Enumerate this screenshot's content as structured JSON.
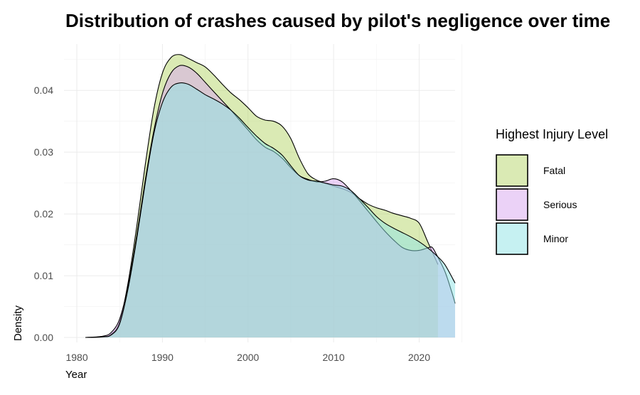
{
  "chart_data": {
    "type": "area",
    "subtype": "density",
    "title": "Distribution of crashes caused by pilot's negligence over time",
    "xlabel": "Year",
    "ylabel": "Density",
    "xlim": [
      1978.5,
      2024.2
    ],
    "ylim": [
      -0.0008,
      0.0475
    ],
    "x_ticks": [
      1980,
      1990,
      2000,
      2010,
      2020
    ],
    "y_ticks": [
      0.0,
      0.01,
      0.02,
      0.03,
      0.04
    ],
    "y_tick_labels": [
      "0.00",
      "0.01",
      "0.02",
      "0.03",
      "0.04"
    ],
    "grid": true,
    "legend": {
      "title": "Highest Injury Level",
      "position": "right"
    },
    "series": [
      {
        "name": "Fatal",
        "color": "#b5d56a",
        "points": [
          [
            1981,
            0
          ],
          [
            1983,
            0.0001
          ],
          [
            1984,
            0.0005
          ],
          [
            1985,
            0.0025
          ],
          [
            1986,
            0.009
          ],
          [
            1987,
            0.018
          ],
          [
            1988,
            0.028
          ],
          [
            1989,
            0.037
          ],
          [
            1990,
            0.0428
          ],
          [
            1991,
            0.0453
          ],
          [
            1992,
            0.0458
          ],
          [
            1993,
            0.0452
          ],
          [
            1994,
            0.0445
          ],
          [
            1995,
            0.0438
          ],
          [
            1996,
            0.0425
          ],
          [
            1997,
            0.041
          ],
          [
            1998,
            0.0396
          ],
          [
            1999,
            0.0385
          ],
          [
            2000,
            0.0372
          ],
          [
            2001,
            0.0358
          ],
          [
            2002,
            0.0352
          ],
          [
            2003,
            0.035
          ],
          [
            2004,
            0.0342
          ],
          [
            2005,
            0.0322
          ],
          [
            2006,
            0.029
          ],
          [
            2007,
            0.0265
          ],
          [
            2008,
            0.0255
          ],
          [
            2009,
            0.025
          ],
          [
            2010,
            0.0245
          ],
          [
            2011,
            0.0241
          ],
          [
            2012,
            0.0235
          ],
          [
            2013,
            0.0225
          ],
          [
            2014,
            0.0216
          ],
          [
            2015,
            0.021
          ],
          [
            2016,
            0.0206
          ],
          [
            2017,
            0.0201
          ],
          [
            2018,
            0.0197
          ],
          [
            2019,
            0.0193
          ],
          [
            2020,
            0.0185
          ],
          [
            2021,
            0.0155
          ],
          [
            2022.2,
            0.0118
          ]
        ]
      },
      {
        "name": "Serious",
        "color": "#d7a6f0",
        "points": [
          [
            1981,
            0
          ],
          [
            1983,
            0.0002
          ],
          [
            1984,
            0.0008
          ],
          [
            1985,
            0.003
          ],
          [
            1986,
            0.0085
          ],
          [
            1987,
            0.0165
          ],
          [
            1988,
            0.0255
          ],
          [
            1989,
            0.0335
          ],
          [
            1990,
            0.0395
          ],
          [
            1991,
            0.0428
          ],
          [
            1992,
            0.044
          ],
          [
            1993,
            0.0438
          ],
          [
            1994,
            0.0428
          ],
          [
            1995,
            0.0413
          ],
          [
            1996,
            0.0398
          ],
          [
            1997,
            0.0383
          ],
          [
            1998,
            0.0368
          ],
          [
            1999,
            0.0352
          ],
          [
            2000,
            0.0336
          ],
          [
            2001,
            0.032
          ],
          [
            2002,
            0.0308
          ],
          [
            2003,
            0.0301
          ],
          [
            2004,
            0.029
          ],
          [
            2005,
            0.0275
          ],
          [
            2006,
            0.0262
          ],
          [
            2007,
            0.0256
          ],
          [
            2008,
            0.0252
          ],
          [
            2009,
            0.0253
          ],
          [
            2010,
            0.0257
          ],
          [
            2011,
            0.0252
          ],
          [
            2012,
            0.0238
          ],
          [
            2013,
            0.0222
          ],
          [
            2014,
            0.0205
          ],
          [
            2015,
            0.0188
          ],
          [
            2016,
            0.0172
          ],
          [
            2017,
            0.0158
          ],
          [
            2018,
            0.0146
          ],
          [
            2019,
            0.0141
          ],
          [
            2020,
            0.0141
          ],
          [
            2021,
            0.0145
          ],
          [
            2021.5,
            0.0146
          ],
          [
            2022,
            0.0135
          ],
          [
            2023,
            0.0107
          ],
          [
            2023.8,
            0.0074
          ],
          [
            2024.2,
            0.0055
          ]
        ]
      },
      {
        "name": "Minor",
        "color": "#8ee3e6",
        "points": [
          [
            1981,
            0
          ],
          [
            1983,
            0.0001
          ],
          [
            1984,
            0.0004
          ],
          [
            1985,
            0.0022
          ],
          [
            1986,
            0.008
          ],
          [
            1987,
            0.016
          ],
          [
            1988,
            0.025
          ],
          [
            1989,
            0.033
          ],
          [
            1990,
            0.038
          ],
          [
            1991,
            0.0405
          ],
          [
            1992,
            0.0412
          ],
          [
            1993,
            0.041
          ],
          [
            1994,
            0.0402
          ],
          [
            1995,
            0.0393
          ],
          [
            1996,
            0.0386
          ],
          [
            1997,
            0.0378
          ],
          [
            1998,
            0.0368
          ],
          [
            1999,
            0.0355
          ],
          [
            2000,
            0.034
          ],
          [
            2001,
            0.0326
          ],
          [
            2002,
            0.0314
          ],
          [
            2003,
            0.0306
          ],
          [
            2004,
            0.0295
          ],
          [
            2005,
            0.0278
          ],
          [
            2006,
            0.0262
          ],
          [
            2007,
            0.0255
          ],
          [
            2008,
            0.0253
          ],
          [
            2009,
            0.025
          ],
          [
            2010,
            0.0247
          ],
          [
            2011,
            0.0245
          ],
          [
            2012,
            0.0238
          ],
          [
            2013,
            0.0225
          ],
          [
            2014,
            0.0211
          ],
          [
            2015,
            0.0196
          ],
          [
            2016,
            0.0185
          ],
          [
            2017,
            0.0177
          ],
          [
            2018,
            0.017
          ],
          [
            2019,
            0.0163
          ],
          [
            2020,
            0.0155
          ],
          [
            2021,
            0.0145
          ],
          [
            2022,
            0.0133
          ],
          [
            2023,
            0.0118
          ],
          [
            2024.2,
            0.0088
          ]
        ]
      }
    ]
  }
}
